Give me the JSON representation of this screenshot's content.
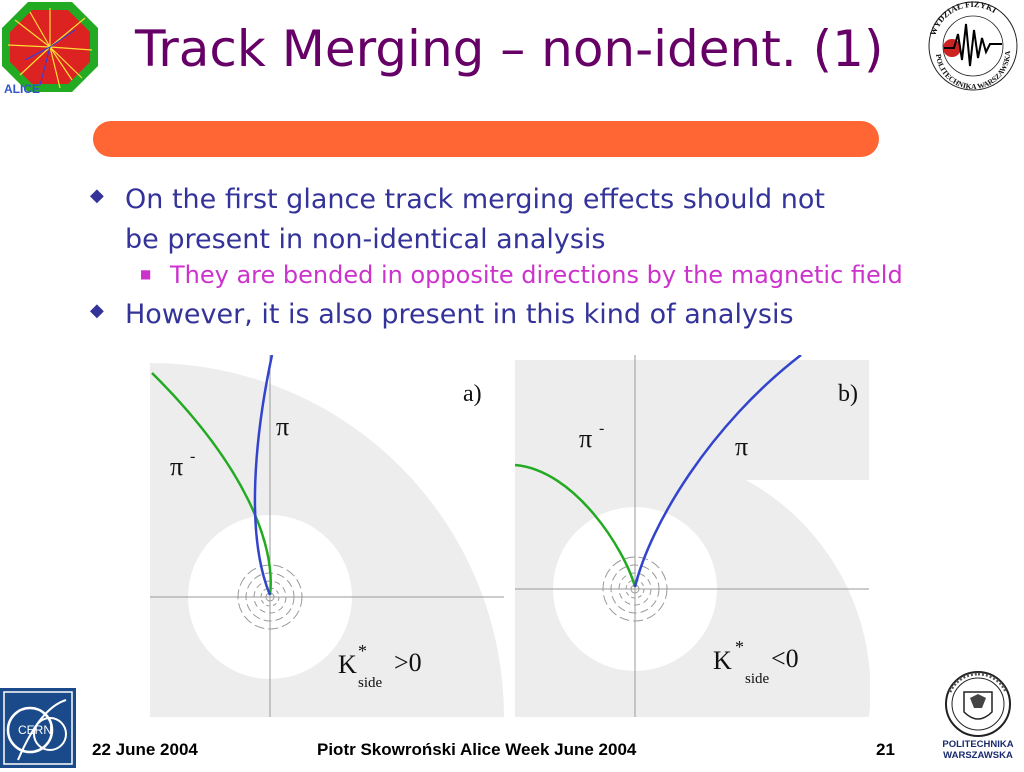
{
  "slide": {
    "title": "Track Merging – non-ident. (1)",
    "bullets": [
      {
        "line1": "On the first glance track merging effects should not",
        "line2": "be present in non-identical analysis"
      },
      {
        "line1": "However, it is also present in this kind of analysis"
      }
    ],
    "sub_bullet": "They are bended in opposite directions by the magnetic field",
    "colors": {
      "title": "#660066",
      "bullet": "#333399",
      "sub_bullet": "#cc33cc",
      "bar": "#ff6633",
      "track_pi": "#3344cc",
      "track_pim": "#22aa22"
    }
  },
  "figures": {
    "a": {
      "label": "a)",
      "pi": "π",
      "pim": "π",
      "pim_sup": "-",
      "k": "K",
      "k_sup": "*",
      "k_sub": "side",
      "k_rel": ">0"
    },
    "b": {
      "label": "b)",
      "pi": "π",
      "pim": "π",
      "pim_sup": "-",
      "k": "K",
      "k_sup": "*",
      "k_sub": "side",
      "k_rel": "<0"
    }
  },
  "logos": {
    "wf_text": "WYDZIAŁ FIZYKI · POLITECHNIKA WARSZAWSKA",
    "cern_text": "CERN",
    "pw_line1": "POLITECHNIKA",
    "pw_line2": "WARSZAWSKA"
  },
  "footer": {
    "date": "22 June 2004",
    "author": "Piotr Skowroński  Alice Week June  2004",
    "page": "21"
  }
}
